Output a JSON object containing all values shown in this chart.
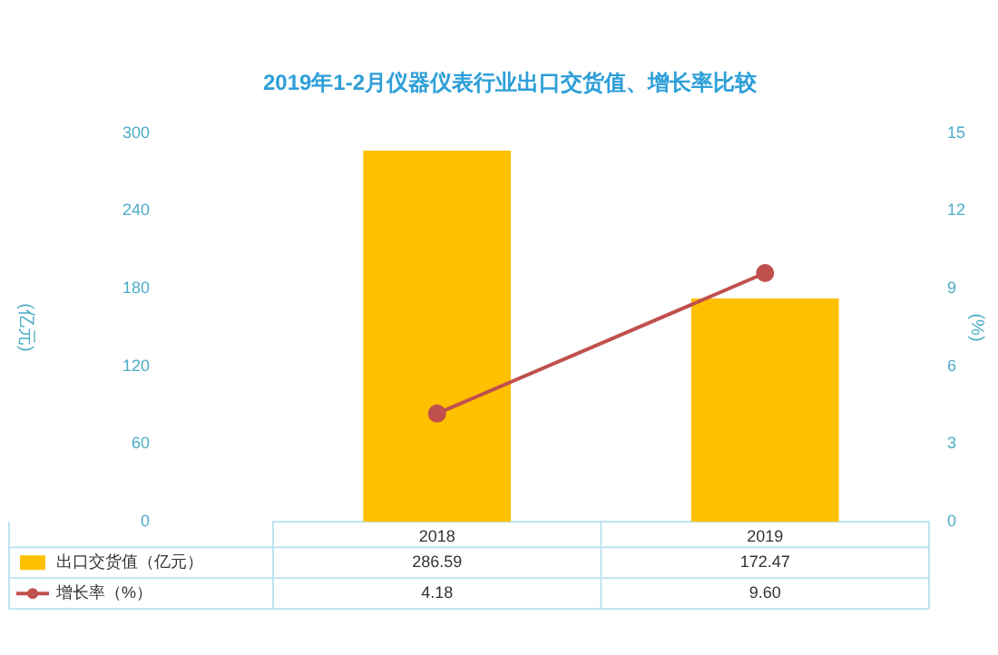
{
  "chart_data": {
    "type": "bar",
    "title": "2019年1-2月仪器仪表行业出口交货值、增长率比较",
    "ylabel": "(亿元)",
    "y2label": "(%)",
    "categories": [
      "2018",
      "2019"
    ],
    "series": [
      {
        "name": "出口交货值（亿元）",
        "color": "#ffc000",
        "values": [
          286.59,
          172.47
        ],
        "value_labels": [
          "286.59",
          "172.47"
        ]
      },
      {
        "name": "增长率（%）",
        "type": "line",
        "axis": "y2",
        "color": "#c0504d",
        "values": [
          4.18,
          9.6
        ],
        "value_labels": [
          "4.18",
          "9.60"
        ]
      }
    ],
    "ylim": [
      0,
      300
    ],
    "yticks": [
      0,
      60,
      120,
      180,
      240,
      300
    ],
    "y2lim": [
      0,
      15
    ],
    "y2ticks": [
      0,
      3,
      6,
      9,
      12,
      15
    ],
    "legend": "bottom",
    "marker": "circle"
  }
}
